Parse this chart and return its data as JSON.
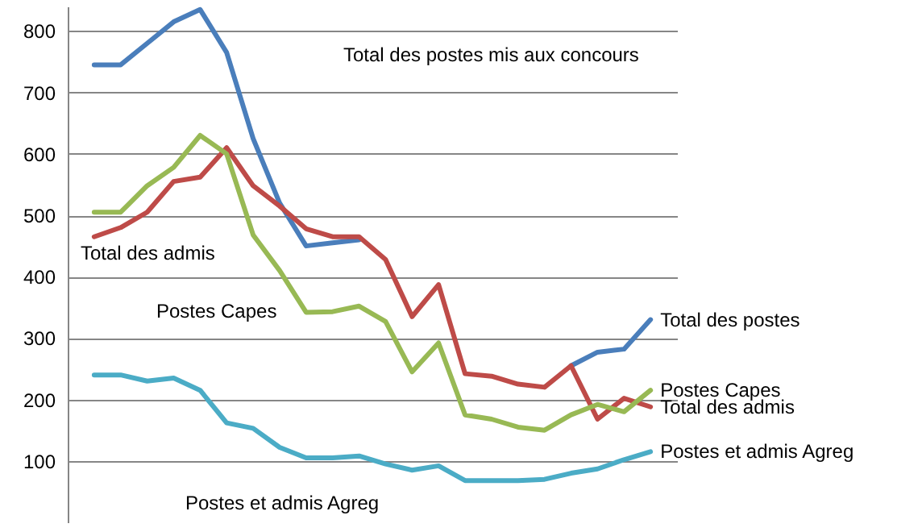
{
  "chart_data": {
    "type": "line",
    "categories": [
      null,
      null,
      null,
      null,
      null,
      null,
      null,
      null,
      null,
      null,
      null,
      null,
      null,
      null,
      null,
      null,
      null,
      null,
      null,
      null,
      null,
      null
    ],
    "series": [
      {
        "name": "Total des postes",
        "color": "#4a7ebb",
        "values": [
          745,
          745,
          780,
          815,
          835,
          765,
          625,
          520,
          450,
          455,
          460,
          null,
          null,
          null,
          null,
          null,
          null,
          null,
          255,
          277,
          282,
          330
        ]
      },
      {
        "name": "Total des admis",
        "color": "#be4b48",
        "values": [
          465,
          480,
          505,
          555,
          562,
          610,
          548,
          515,
          478,
          465,
          465,
          428,
          335,
          387,
          242,
          238,
          225,
          220,
          255,
          168,
          202,
          188
        ]
      },
      {
        "name": "Postes Capes",
        "color": "#98b954",
        "values": [
          505,
          505,
          548,
          578,
          630,
          600,
          468,
          410,
          342,
          343,
          352,
          327,
          245,
          292,
          175,
          168,
          155,
          150,
          175,
          192,
          180,
          215
        ]
      },
      {
        "name": "Postes et admis Agreg",
        "color": "#4bacc6",
        "values": [
          240,
          240,
          230,
          235,
          215,
          162,
          153,
          122,
          105,
          105,
          108,
          95,
          85,
          92,
          68,
          68,
          68,
          70,
          80,
          87,
          102,
          115
        ]
      }
    ],
    "ylim": [
      0,
      840
    ],
    "yticks": [
      100,
      200,
      300,
      400,
      500,
      600,
      700,
      800
    ],
    "grid": "y",
    "tick_labels": "y",
    "annotations": [
      "Total des postes mis aux concours",
      "Total des admis",
      "Postes Capes",
      "Postes et admis Agreg"
    ]
  }
}
